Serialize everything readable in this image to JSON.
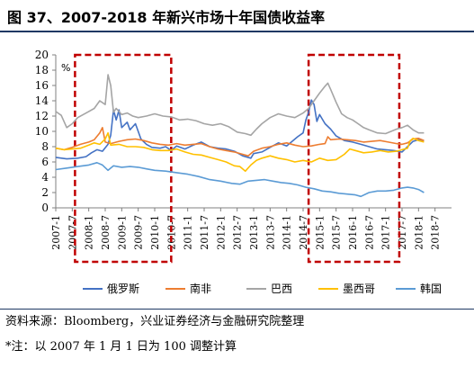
{
  "title": "图 37、2007-2018 年新兴市场十年国债收益率",
  "source": "资料来源：Bloomberg，兴业证券经济与金融研究院整理",
  "note": "*注：以 2007 年 1 月 1 日为 100 调整计算",
  "chart_data": {
    "type": "line",
    "unit_label": "%",
    "ylim": [
      0,
      20
    ],
    "yticks": [
      0,
      2,
      4,
      6,
      8,
      10,
      12,
      14,
      16,
      18,
      20
    ],
    "xlim": [
      0,
      144
    ],
    "xticks": [
      "2007-1",
      "2007-7",
      "2008-1",
      "2008-7",
      "2009-1",
      "2009-7",
      "2010-1",
      "2010-7",
      "2011-1",
      "2011-7",
      "2012-1",
      "2012-7",
      "2013-1",
      "2013-7",
      "2014-1",
      "2014-7",
      "2015-1",
      "2015-7",
      "2016-1",
      "2016-7",
      "2017-1",
      "2017-7",
      "2018-1",
      "2018-7"
    ],
    "grid": false,
    "legend_position": "bottom",
    "highlight_boxes": [
      {
        "x_start": 7,
        "x_end": 42,
        "y_top": 20
      },
      {
        "x_start": 92,
        "x_end": 125,
        "y_top": 20
      }
    ],
    "series": [
      {
        "name": "俄罗斯",
        "color": "#4472c4",
        "points": [
          [
            0,
            6.6
          ],
          [
            4,
            6.4
          ],
          [
            8,
            6.5
          ],
          [
            11,
            6.7
          ],
          [
            13,
            7.2
          ],
          [
            15,
            7.6
          ],
          [
            17,
            7.4
          ],
          [
            19,
            8.3
          ],
          [
            20,
            9.5
          ],
          [
            21,
            12.8
          ],
          [
            22,
            11.5
          ],
          [
            23,
            12.8
          ],
          [
            24,
            10.5
          ],
          [
            26,
            11.2
          ],
          [
            27,
            10.2
          ],
          [
            29,
            11.0
          ],
          [
            31,
            9.0
          ],
          [
            33,
            8.3
          ],
          [
            35,
            7.9
          ],
          [
            38,
            7.8
          ],
          [
            40,
            8.0
          ],
          [
            42,
            7.5
          ],
          [
            44,
            8.1
          ],
          [
            47,
            7.7
          ],
          [
            50,
            8.2
          ],
          [
            53,
            8.6
          ],
          [
            56,
            8.0
          ],
          [
            59,
            7.8
          ],
          [
            62,
            7.7
          ],
          [
            65,
            7.4
          ],
          [
            68,
            6.8
          ],
          [
            71,
            6.5
          ],
          [
            72,
            7.1
          ],
          [
            75,
            7.3
          ],
          [
            78,
            7.9
          ],
          [
            81,
            8.5
          ],
          [
            84,
            8.1
          ],
          [
            86,
            8.7
          ],
          [
            88,
            9.3
          ],
          [
            90,
            9.8
          ],
          [
            91,
            11.5
          ],
          [
            92,
            12.5
          ],
          [
            93,
            14.1
          ],
          [
            94,
            13.5
          ],
          [
            95,
            11.3
          ],
          [
            96,
            12.2
          ],
          [
            98,
            11.0
          ],
          [
            100,
            10.3
          ],
          [
            102,
            9.4
          ],
          [
            105,
            8.8
          ],
          [
            108,
            8.6
          ],
          [
            111,
            8.3
          ],
          [
            114,
            8.0
          ],
          [
            117,
            7.7
          ],
          [
            120,
            7.6
          ],
          [
            123,
            7.5
          ],
          [
            126,
            7.3
          ],
          [
            128,
            8.0
          ],
          [
            130,
            8.7
          ],
          [
            132,
            8.9
          ],
          [
            134,
            8.8
          ]
        ]
      },
      {
        "name": "南非",
        "color": "#ed7d31",
        "points": [
          [
            0,
            7.8
          ],
          [
            3,
            7.6
          ],
          [
            6,
            7.9
          ],
          [
            9,
            8.3
          ],
          [
            12,
            8.6
          ],
          [
            14,
            8.9
          ],
          [
            16,
            9.8
          ],
          [
            17,
            10.5
          ],
          [
            18,
            8.6
          ],
          [
            20,
            8.4
          ],
          [
            23,
            8.7
          ],
          [
            26,
            8.9
          ],
          [
            29,
            9.0
          ],
          [
            32,
            8.8
          ],
          [
            35,
            8.5
          ],
          [
            38,
            8.3
          ],
          [
            41,
            8.2
          ],
          [
            44,
            8.4
          ],
          [
            47,
            8.2
          ],
          [
            50,
            8.3
          ],
          [
            53,
            8.4
          ],
          [
            56,
            8.0
          ],
          [
            59,
            7.7
          ],
          [
            62,
            7.5
          ],
          [
            65,
            7.3
          ],
          [
            68,
            7.0
          ],
          [
            70,
            6.8
          ],
          [
            72,
            7.4
          ],
          [
            75,
            7.8
          ],
          [
            78,
            8.0
          ],
          [
            81,
            8.3
          ],
          [
            84,
            8.5
          ],
          [
            87,
            8.2
          ],
          [
            90,
            8.0
          ],
          [
            93,
            8.1
          ],
          [
            96,
            8.3
          ],
          [
            98,
            8.4
          ],
          [
            99,
            9.3
          ],
          [
            100,
            8.9
          ],
          [
            103,
            9.0
          ],
          [
            106,
            8.9
          ],
          [
            109,
            8.8
          ],
          [
            112,
            8.6
          ],
          [
            115,
            8.7
          ],
          [
            118,
            8.8
          ],
          [
            121,
            8.6
          ],
          [
            124,
            8.4
          ],
          [
            126,
            8.3
          ],
          [
            128,
            8.5
          ],
          [
            130,
            9.0
          ],
          [
            132,
            9.1
          ],
          [
            134,
            8.8
          ]
        ]
      },
      {
        "name": "巴西",
        "color": "#a5a5a5",
        "points": [
          [
            0,
            12.6
          ],
          [
            2,
            12.1
          ],
          [
            4,
            10.5
          ],
          [
            6,
            11.0
          ],
          [
            8,
            11.8
          ],
          [
            10,
            12.2
          ],
          [
            12,
            12.6
          ],
          [
            14,
            13.0
          ],
          [
            16,
            14.0
          ],
          [
            18,
            13.5
          ],
          [
            19,
            17.4
          ],
          [
            20,
            16.0
          ],
          [
            21,
            12.5
          ],
          [
            22,
            13.0
          ],
          [
            24,
            12.2
          ],
          [
            26,
            12.4
          ],
          [
            28,
            12.0
          ],
          [
            30,
            11.8
          ],
          [
            33,
            12.0
          ],
          [
            36,
            12.3
          ],
          [
            39,
            12.0
          ],
          [
            42,
            11.9
          ],
          [
            45,
            11.5
          ],
          [
            48,
            11.6
          ],
          [
            51,
            11.4
          ],
          [
            54,
            11.0
          ],
          [
            57,
            10.8
          ],
          [
            60,
            11.0
          ],
          [
            63,
            10.6
          ],
          [
            66,
            9.9
          ],
          [
            69,
            9.7
          ],
          [
            71,
            9.5
          ],
          [
            73,
            10.3
          ],
          [
            75,
            11.0
          ],
          [
            78,
            11.8
          ],
          [
            81,
            12.3
          ],
          [
            84,
            12.0
          ],
          [
            87,
            11.8
          ],
          [
            90,
            12.4
          ],
          [
            92,
            13.0
          ],
          [
            94,
            14.0
          ],
          [
            96,
            15.0
          ],
          [
            98,
            15.9
          ],
          [
            99,
            16.3
          ],
          [
            100,
            15.5
          ],
          [
            102,
            13.8
          ],
          [
            104,
            12.3
          ],
          [
            106,
            11.8
          ],
          [
            108,
            11.5
          ],
          [
            110,
            11.0
          ],
          [
            112,
            10.5
          ],
          [
            114,
            10.2
          ],
          [
            117,
            9.8
          ],
          [
            120,
            9.7
          ],
          [
            122,
            10.0
          ],
          [
            124,
            10.3
          ],
          [
            126,
            10.5
          ],
          [
            128,
            10.8
          ],
          [
            130,
            10.2
          ],
          [
            132,
            9.8
          ],
          [
            134,
            9.8
          ]
        ]
      },
      {
        "name": "墨西哥",
        "color": "#ffc000",
        "points": [
          [
            0,
            7.8
          ],
          [
            3,
            7.6
          ],
          [
            6,
            7.7
          ],
          [
            9,
            7.8
          ],
          [
            12,
            8.2
          ],
          [
            14,
            8.5
          ],
          [
            16,
            8.3
          ],
          [
            18,
            9.0
          ],
          [
            19,
            9.8
          ],
          [
            20,
            8.2
          ],
          [
            23,
            8.3
          ],
          [
            26,
            8.0
          ],
          [
            29,
            8.0
          ],
          [
            32,
            7.9
          ],
          [
            35,
            7.6
          ],
          [
            38,
            7.5
          ],
          [
            41,
            7.5
          ],
          [
            44,
            7.7
          ],
          [
            47,
            7.3
          ],
          [
            50,
            7.0
          ],
          [
            53,
            6.9
          ],
          [
            56,
            6.6
          ],
          [
            59,
            6.3
          ],
          [
            62,
            6.0
          ],
          [
            65,
            5.5
          ],
          [
            67,
            5.4
          ],
          [
            69,
            4.8
          ],
          [
            71,
            5.6
          ],
          [
            73,
            6.2
          ],
          [
            75,
            6.5
          ],
          [
            78,
            6.8
          ],
          [
            81,
            6.5
          ],
          [
            84,
            6.3
          ],
          [
            87,
            6.0
          ],
          [
            90,
            6.2
          ],
          [
            93,
            6.0
          ],
          [
            96,
            6.5
          ],
          [
            99,
            6.2
          ],
          [
            102,
            6.3
          ],
          [
            105,
            7.0
          ],
          [
            107,
            7.7
          ],
          [
            109,
            7.5
          ],
          [
            112,
            7.2
          ],
          [
            115,
            7.3
          ],
          [
            118,
            7.5
          ],
          [
            121,
            7.3
          ],
          [
            124,
            7.4
          ],
          [
            126,
            7.6
          ],
          [
            128,
            7.8
          ],
          [
            129,
            8.8
          ],
          [
            130,
            9.1
          ],
          [
            132,
            8.8
          ],
          [
            134,
            8.6
          ]
        ]
      },
      {
        "name": "韩国",
        "color": "#5b9bd5",
        "points": [
          [
            0,
            5.0
          ],
          [
            4,
            5.2
          ],
          [
            8,
            5.4
          ],
          [
            12,
            5.6
          ],
          [
            15,
            5.9
          ],
          [
            17,
            5.6
          ],
          [
            19,
            4.9
          ],
          [
            21,
            5.5
          ],
          [
            24,
            5.3
          ],
          [
            27,
            5.4
          ],
          [
            30,
            5.3
          ],
          [
            33,
            5.1
          ],
          [
            36,
            4.9
          ],
          [
            40,
            4.8
          ],
          [
            44,
            4.6
          ],
          [
            48,
            4.4
          ],
          [
            52,
            4.1
          ],
          [
            56,
            3.7
          ],
          [
            60,
            3.5
          ],
          [
            64,
            3.2
          ],
          [
            67,
            3.1
          ],
          [
            70,
            3.5
          ],
          [
            73,
            3.6
          ],
          [
            76,
            3.7
          ],
          [
            79,
            3.5
          ],
          [
            82,
            3.3
          ],
          [
            85,
            3.2
          ],
          [
            88,
            3.0
          ],
          [
            91,
            2.7
          ],
          [
            94,
            2.5
          ],
          [
            97,
            2.2
          ],
          [
            100,
            2.1
          ],
          [
            103,
            1.9
          ],
          [
            106,
            1.8
          ],
          [
            109,
            1.7
          ],
          [
            111,
            1.5
          ],
          [
            114,
            2.0
          ],
          [
            117,
            2.2
          ],
          [
            120,
            2.2
          ],
          [
            123,
            2.3
          ],
          [
            126,
            2.6
          ],
          [
            128,
            2.7
          ],
          [
            130,
            2.6
          ],
          [
            132,
            2.4
          ],
          [
            134,
            2.0
          ]
        ]
      }
    ]
  }
}
